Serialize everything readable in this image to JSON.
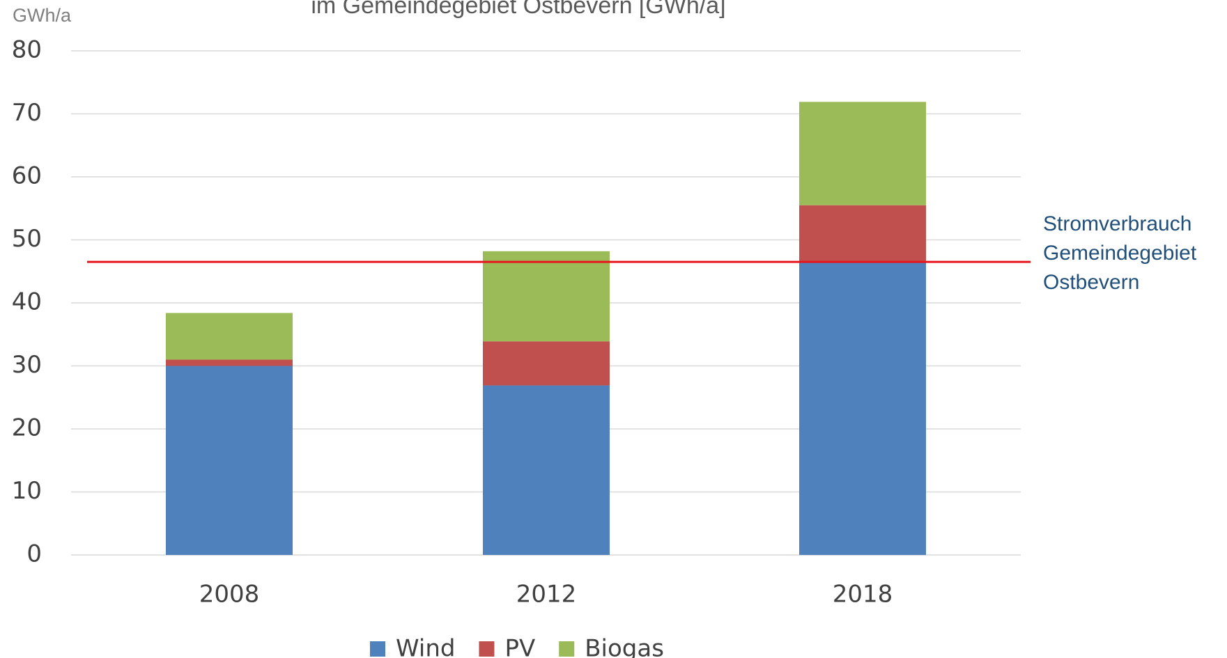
{
  "chart_data": {
    "type": "stacked_bar",
    "title": "im Gemeindegebiet Ostbevern [GWh/a]",
    "y_label": "GWh/a",
    "categories": [
      "2008",
      "2012",
      "2018"
    ],
    "series": [
      {
        "name": "Wind",
        "color": "#4f81bd",
        "values": [
          30,
          26.9,
          46.5
        ]
      },
      {
        "name": "PV",
        "color": "#c0504d",
        "values": [
          1,
          7,
          9
        ]
      },
      {
        "name": "Biogas",
        "color": "#9bbb59",
        "values": [
          7.4,
          14.3,
          16.4
        ]
      }
    ],
    "ylim": [
      0,
      80
    ],
    "yticks": [
      0,
      10,
      20,
      30,
      40,
      50,
      60,
      70,
      80
    ],
    "grid": true,
    "reference_line": {
      "value": 46.5,
      "color": "#e8141b"
    },
    "annotation": {
      "lines": [
        "Stromverbrauch",
        "Gemeindegebiet",
        "Ostbevern"
      ],
      "color": "#1f4e79"
    },
    "legend": "bottom"
  }
}
